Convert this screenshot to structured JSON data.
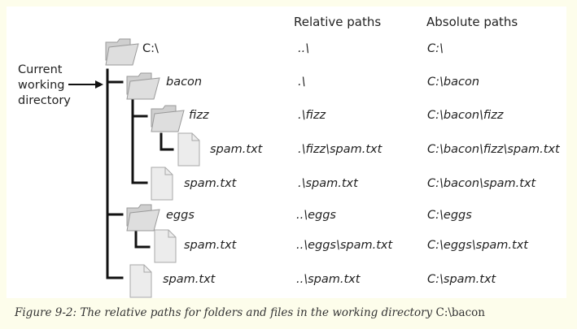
{
  "headers": {
    "relative": "Relative paths",
    "absolute": "Absolute paths"
  },
  "side_label": {
    "lines": [
      "Current",
      "working",
      "directory"
    ]
  },
  "rows": [
    {
      "name": "C:\\",
      "icon": "folder-icon",
      "relative": "..\\",
      "absolute": "C:\\"
    },
    {
      "name": "bacon",
      "icon": "folder-icon",
      "relative": ".\\",
      "absolute": "C:\\bacon"
    },
    {
      "name": "fizz",
      "icon": "folder-icon",
      "relative": ".\\fizz",
      "absolute": "C:\\bacon\\fizz"
    },
    {
      "name": "spam.txt",
      "icon": "file-icon",
      "relative": ".\\fizz\\spam.txt",
      "absolute": "C:\\bacon\\fizz\\spam.txt"
    },
    {
      "name": "spam.txt",
      "icon": "file-icon",
      "relative": ".\\spam.txt",
      "absolute": "C:\\bacon\\spam.txt"
    },
    {
      "name": "eggs",
      "icon": "folder-icon",
      "relative": "..\\eggs",
      "absolute": "C:\\eggs"
    },
    {
      "name": "spam.txt",
      "icon": "file-icon",
      "relative": "..\\eggs\\spam.txt",
      "absolute": "C:\\eggs\\spam.txt"
    },
    {
      "name": "spam.txt",
      "icon": "file-icon",
      "relative": "..\\spam.txt",
      "absolute": "C:\\spam.txt"
    }
  ],
  "caption": {
    "italic": "Figure 9-2: The relative paths for folders and files in the working directory ",
    "plain": "C:\\bacon"
  }
}
